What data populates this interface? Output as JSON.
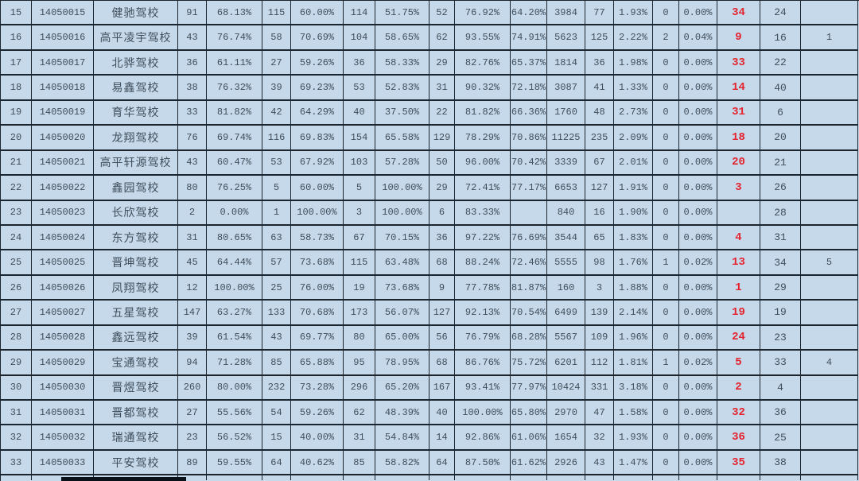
{
  "window": {
    "description": "spreadsheet table of driving-school exam pass statistics, rows 15-33"
  },
  "colors": {
    "cell_bg": "#c5d9ea",
    "grid_line": "#1b2530",
    "text": "#414e5b",
    "red_text": "#e4232e",
    "selection_bar": "#0a1118"
  },
  "table": {
    "column_keys": [
      "seq",
      "school-id",
      "school-name",
      "count-1",
      "rate-1",
      "count-2",
      "rate-2",
      "count-3",
      "rate-3",
      "count-4",
      "rate-4",
      "overall-rate",
      "total",
      "count-5",
      "rate-5",
      "count-6",
      "rate-6",
      "rank-red",
      "rank-secondary",
      "note"
    ],
    "red_column_index": 17,
    "rows": [
      [
        "15",
        "14050015",
        "健驰驾校",
        "91",
        "68.13%",
        "115",
        "60.00%",
        "114",
        "51.75%",
        "52",
        "76.92%",
        "64.20%",
        "3984",
        "77",
        "1.93%",
        "0",
        "0.00%",
        "34",
        "24",
        ""
      ],
      [
        "16",
        "14050016",
        "高平凌宇驾校",
        "43",
        "76.74%",
        "58",
        "70.69%",
        "104",
        "58.65%",
        "62",
        "93.55%",
        "74.91%",
        "5623",
        "125",
        "2.22%",
        "2",
        "0.04%",
        "9",
        "16",
        "1"
      ],
      [
        "17",
        "14050017",
        "北骅驾校",
        "36",
        "61.11%",
        "27",
        "59.26%",
        "36",
        "58.33%",
        "29",
        "82.76%",
        "65.37%",
        "1814",
        "36",
        "1.98%",
        "0",
        "0.00%",
        "33",
        "22",
        ""
      ],
      [
        "18",
        "14050018",
        "易鑫驾校",
        "38",
        "76.32%",
        "39",
        "69.23%",
        "53",
        "52.83%",
        "31",
        "90.32%",
        "72.18%",
        "3087",
        "41",
        "1.33%",
        "0",
        "0.00%",
        "14",
        "40",
        ""
      ],
      [
        "19",
        "14050019",
        "育华驾校",
        "33",
        "81.82%",
        "42",
        "64.29%",
        "40",
        "37.50%",
        "22",
        "81.82%",
        "66.36%",
        "1760",
        "48",
        "2.73%",
        "0",
        "0.00%",
        "31",
        "6",
        ""
      ],
      [
        "20",
        "14050020",
        "龙翔驾校",
        "76",
        "69.74%",
        "116",
        "69.83%",
        "154",
        "65.58%",
        "129",
        "78.29%",
        "70.86%",
        "11225",
        "235",
        "2.09%",
        "0",
        "0.00%",
        "18",
        "20",
        ""
      ],
      [
        "21",
        "14050021",
        "高平轩源驾校",
        "43",
        "60.47%",
        "53",
        "67.92%",
        "103",
        "57.28%",
        "50",
        "96.00%",
        "70.42%",
        "3339",
        "67",
        "2.01%",
        "0",
        "0.00%",
        "20",
        "21",
        ""
      ],
      [
        "22",
        "14050022",
        "鑫园驾校",
        "80",
        "76.25%",
        "5",
        "60.00%",
        "5",
        "100.00%",
        "29",
        "72.41%",
        "77.17%",
        "6653",
        "127",
        "1.91%",
        "0",
        "0.00%",
        "3",
        "26",
        ""
      ],
      [
        "23",
        "14050023",
        "长欣驾校",
        "2",
        "0.00%",
        "1",
        "100.00%",
        "3",
        "100.00%",
        "6",
        "83.33%",
        "",
        "840",
        "16",
        "1.90%",
        "0",
        "0.00%",
        "",
        "28",
        ""
      ],
      [
        "24",
        "14050024",
        "东方驾校",
        "31",
        "80.65%",
        "63",
        "58.73%",
        "67",
        "70.15%",
        "36",
        "97.22%",
        "76.69%",
        "3544",
        "65",
        "1.83%",
        "0",
        "0.00%",
        "4",
        "31",
        ""
      ],
      [
        "25",
        "14050025",
        "晋坤驾校",
        "45",
        "64.44%",
        "57",
        "73.68%",
        "115",
        "63.48%",
        "68",
        "88.24%",
        "72.46%",
        "5555",
        "98",
        "1.76%",
        "1",
        "0.02%",
        "13",
        "34",
        "5"
      ],
      [
        "26",
        "14050026",
        "凤翔驾校",
        "12",
        "100.00%",
        "25",
        "76.00%",
        "19",
        "73.68%",
        "9",
        "77.78%",
        "81.87%",
        "160",
        "3",
        "1.88%",
        "0",
        "0.00%",
        "1",
        "29",
        ""
      ],
      [
        "27",
        "14050027",
        "五星驾校",
        "147",
        "63.27%",
        "133",
        "70.68%",
        "173",
        "56.07%",
        "127",
        "92.13%",
        "70.54%",
        "6499",
        "139",
        "2.14%",
        "0",
        "0.00%",
        "19",
        "19",
        ""
      ],
      [
        "28",
        "14050028",
        "鑫远驾校",
        "39",
        "61.54%",
        "43",
        "69.77%",
        "80",
        "65.00%",
        "56",
        "76.79%",
        "68.28%",
        "5567",
        "109",
        "1.96%",
        "0",
        "0.00%",
        "24",
        "23",
        ""
      ],
      [
        "29",
        "14050029",
        "宝通驾校",
        "94",
        "71.28%",
        "85",
        "65.88%",
        "95",
        "78.95%",
        "68",
        "86.76%",
        "75.72%",
        "6201",
        "112",
        "1.81%",
        "1",
        "0.02%",
        "5",
        "33",
        "4"
      ],
      [
        "30",
        "14050030",
        "晋煜驾校",
        "260",
        "80.00%",
        "232",
        "73.28%",
        "296",
        "65.20%",
        "167",
        "93.41%",
        "77.97%",
        "10424",
        "331",
        "3.18%",
        "0",
        "0.00%",
        "2",
        "4",
        ""
      ],
      [
        "31",
        "14050031",
        "晋都驾校",
        "27",
        "55.56%",
        "54",
        "59.26%",
        "62",
        "48.39%",
        "40",
        "100.00%",
        "65.80%",
        "2970",
        "47",
        "1.58%",
        "0",
        "0.00%",
        "32",
        "36",
        ""
      ],
      [
        "32",
        "14050032",
        "瑞通驾校",
        "23",
        "56.52%",
        "15",
        "40.00%",
        "31",
        "54.84%",
        "14",
        "92.86%",
        "61.06%",
        "1654",
        "32",
        "1.93%",
        "0",
        "0.00%",
        "36",
        "25",
        ""
      ],
      [
        "33",
        "14050033",
        "平安驾校",
        "89",
        "59.55%",
        "64",
        "40.62%",
        "85",
        "58.82%",
        "64",
        "87.50%",
        "61.62%",
        "2926",
        "43",
        "1.47%",
        "0",
        "0.00%",
        "35",
        "38",
        ""
      ]
    ]
  },
  "partial_row": {
    "visible": true,
    "selection_bar_visible": true
  }
}
